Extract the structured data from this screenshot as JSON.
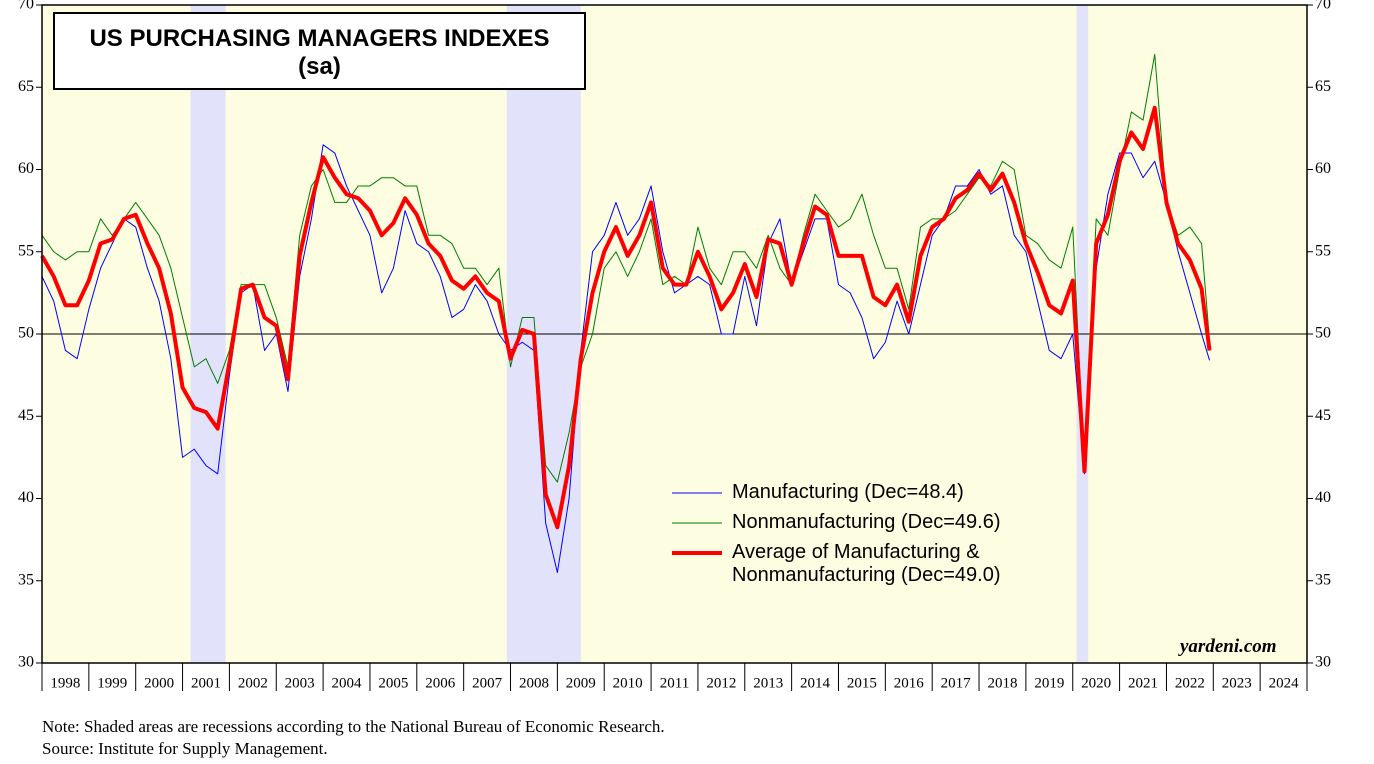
{
  "chart_data": {
    "type": "line",
    "title": "US PURCHASING MANAGERS INDEXES",
    "subtitle": "(sa)",
    "watermark": "yardeni.com",
    "notes": [
      "Note: Shaded areas are recessions according to the National Bureau of Economic Research.",
      "Source: Institute for Supply Management."
    ],
    "xlim": [
      1998,
      2025
    ],
    "xticks": [
      1998,
      1999,
      2000,
      2001,
      2002,
      2003,
      2004,
      2005,
      2006,
      2007,
      2008,
      2009,
      2010,
      2011,
      2012,
      2013,
      2014,
      2015,
      2016,
      2017,
      2018,
      2019,
      2020,
      2021,
      2022,
      2023,
      2024
    ],
    "ylim": [
      30,
      70
    ],
    "yticks": [
      30,
      35,
      40,
      45,
      50,
      55,
      60,
      65,
      70
    ],
    "hline": 50,
    "recessions": [
      [
        2001.17,
        2001.92
      ],
      [
        2007.92,
        2009.5
      ],
      [
        2020.08,
        2020.33
      ]
    ],
    "x": [
      1998.0,
      1998.25,
      1998.5,
      1998.75,
      1999.0,
      1999.25,
      1999.5,
      1999.75,
      2000.0,
      2000.25,
      2000.5,
      2000.75,
      2001.0,
      2001.25,
      2001.5,
      2001.75,
      2002.0,
      2002.25,
      2002.5,
      2002.75,
      2003.0,
      2003.25,
      2003.5,
      2003.75,
      2004.0,
      2004.25,
      2004.5,
      2004.75,
      2005.0,
      2005.25,
      2005.5,
      2005.75,
      2006.0,
      2006.25,
      2006.5,
      2006.75,
      2007.0,
      2007.25,
      2007.5,
      2007.75,
      2008.0,
      2008.25,
      2008.5,
      2008.75,
      2009.0,
      2009.25,
      2009.5,
      2009.75,
      2010.0,
      2010.25,
      2010.5,
      2010.75,
      2011.0,
      2011.25,
      2011.5,
      2011.75,
      2012.0,
      2012.25,
      2012.5,
      2012.75,
      2013.0,
      2013.25,
      2013.5,
      2013.75,
      2014.0,
      2014.25,
      2014.5,
      2014.75,
      2015.0,
      2015.25,
      2015.5,
      2015.75,
      2016.0,
      2016.25,
      2016.5,
      2016.75,
      2017.0,
      2017.25,
      2017.5,
      2017.75,
      2018.0,
      2018.25,
      2018.5,
      2018.75,
      2019.0,
      2019.25,
      2019.5,
      2019.75,
      2020.0,
      2020.25,
      2020.5,
      2020.75,
      2021.0,
      2021.25,
      2021.5,
      2021.75,
      2022.0,
      2022.25,
      2022.5,
      2022.75,
      2022.92
    ],
    "series": [
      {
        "name": "Manufacturing (Dec=48.4)",
        "color": "#0000ff",
        "width": 1,
        "values": [
          53.5,
          52,
          49,
          48.5,
          51.5,
          54,
          55.5,
          57,
          56.5,
          54,
          52,
          48.5,
          42.5,
          43,
          42,
          41.5,
          47.5,
          52.5,
          53,
          49,
          50,
          46.5,
          53.5,
          57,
          61.5,
          61,
          59,
          57.5,
          56,
          52.5,
          54,
          57.5,
          55.5,
          55,
          53.5,
          51,
          51.5,
          53,
          52,
          50,
          49,
          49.5,
          49,
          38.5,
          35.5,
          40,
          49,
          55,
          56,
          58,
          56,
          57,
          59,
          55,
          52.5,
          53,
          53.5,
          53,
          50,
          50,
          53.5,
          50.5,
          55.5,
          57,
          53,
          55,
          57,
          57,
          53,
          52.5,
          51,
          48.5,
          49.5,
          52,
          50,
          53,
          56,
          57,
          59,
          59,
          60,
          58.5,
          59,
          56,
          55,
          52,
          49,
          48.5,
          50,
          41.5,
          54,
          58.5,
          61,
          61,
          59.5,
          60.5,
          58,
          55,
          52.5,
          50,
          48.4
        ]
      },
      {
        "name": "Nonmanufacturing (Dec=49.6)",
        "color": "#007f00",
        "width": 1,
        "values": [
          56,
          55,
          54.5,
          55,
          55,
          57,
          56,
          57,
          58,
          57,
          56,
          54,
          51,
          48,
          48.5,
          47,
          49,
          53,
          53,
          53,
          51,
          48,
          56,
          59,
          60,
          58,
          58,
          59,
          59,
          59.5,
          59.5,
          59,
          59,
          56,
          56,
          55.5,
          54,
          54,
          53,
          54,
          48,
          51,
          51,
          42,
          41,
          44,
          48,
          50,
          54,
          55,
          53.5,
          55,
          57,
          53,
          53.5,
          53,
          56.5,
          54,
          53,
          55,
          55,
          54,
          56,
          54,
          53,
          56,
          58.5,
          57.5,
          56.5,
          57,
          58.5,
          56,
          54,
          54,
          51.5,
          56.5,
          57,
          57,
          57.5,
          58.5,
          59.5,
          59,
          60.5,
          60,
          56,
          55.5,
          54.5,
          54,
          56.5,
          41.8,
          57,
          56,
          60,
          63.5,
          63,
          67,
          58,
          56,
          56.5,
          55.5,
          49.6
        ]
      },
      {
        "name": "Average of Manufacturing & Nonmanufacturing (Dec=49.0)",
        "color": "#ff0000",
        "width": 4,
        "values": [
          54.75,
          53.5,
          51.75,
          51.75,
          53.25,
          55.5,
          55.75,
          57,
          57.25,
          55.5,
          54,
          51.25,
          46.75,
          45.5,
          45.25,
          44.25,
          48.25,
          52.75,
          53,
          51,
          50.5,
          47.25,
          54.75,
          58,
          60.75,
          59.5,
          58.5,
          58.25,
          57.5,
          56,
          56.75,
          58.25,
          57.25,
          55.5,
          54.75,
          53.25,
          52.75,
          53.5,
          52.5,
          52,
          48.5,
          50.25,
          50,
          40.25,
          38.25,
          42,
          48.5,
          52.5,
          55,
          56.5,
          54.75,
          56,
          58,
          54,
          53,
          53,
          55,
          53.5,
          51.5,
          52.5,
          54.25,
          52.25,
          55.75,
          55.5,
          53,
          55.5,
          57.75,
          57.25,
          54.75,
          54.75,
          54.75,
          52.25,
          51.75,
          53,
          50.75,
          54.75,
          56.5,
          57,
          58.25,
          58.75,
          59.75,
          58.75,
          59.75,
          58,
          55.5,
          53.75,
          51.75,
          51.25,
          53.25,
          41.65,
          55.5,
          57.25,
          60.5,
          62.25,
          61.25,
          63.75,
          58,
          55.5,
          54.5,
          52.75,
          49.0
        ]
      }
    ]
  }
}
